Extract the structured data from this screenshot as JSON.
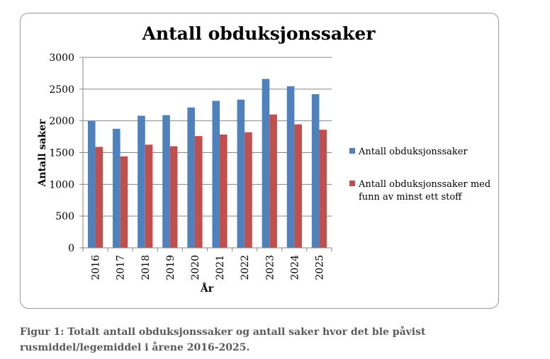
{
  "chart_data": {
    "type": "bar",
    "title": "Antall obduksjonssaker",
    "xlabel": "År",
    "ylabel": "Antall saker",
    "categories": [
      "2016",
      "2017",
      "2018",
      "2019",
      "2020",
      "2021",
      "2022",
      "2023",
      "2024",
      "2025"
    ],
    "ylim": [
      0,
      3000
    ],
    "yticks": [
      "0",
      "500",
      "1000",
      "1500",
      "2000",
      "2500",
      "3000"
    ],
    "grid": true,
    "legend_position": "right",
    "series": [
      {
        "name": "Antall obduksjonssaker",
        "color": "#4f81bd",
        "values": [
          2000,
          1875,
          2080,
          2090,
          2210,
          2315,
          2335,
          2660,
          2545,
          2420
        ]
      },
      {
        "name": "Antall obduksjonssaker med funn av minst ett stoff",
        "color": "#c0504d",
        "values": [
          1590,
          1440,
          1625,
          1600,
          1760,
          1785,
          1820,
          2100,
          1945,
          1860
        ]
      }
    ]
  },
  "caption": {
    "line1": "Figur 1: Totalt antall obduksjonssaker og antall saker hvor det ble påvist",
    "line2": "rusmiddel/legemiddel i årene 2016-2025."
  }
}
